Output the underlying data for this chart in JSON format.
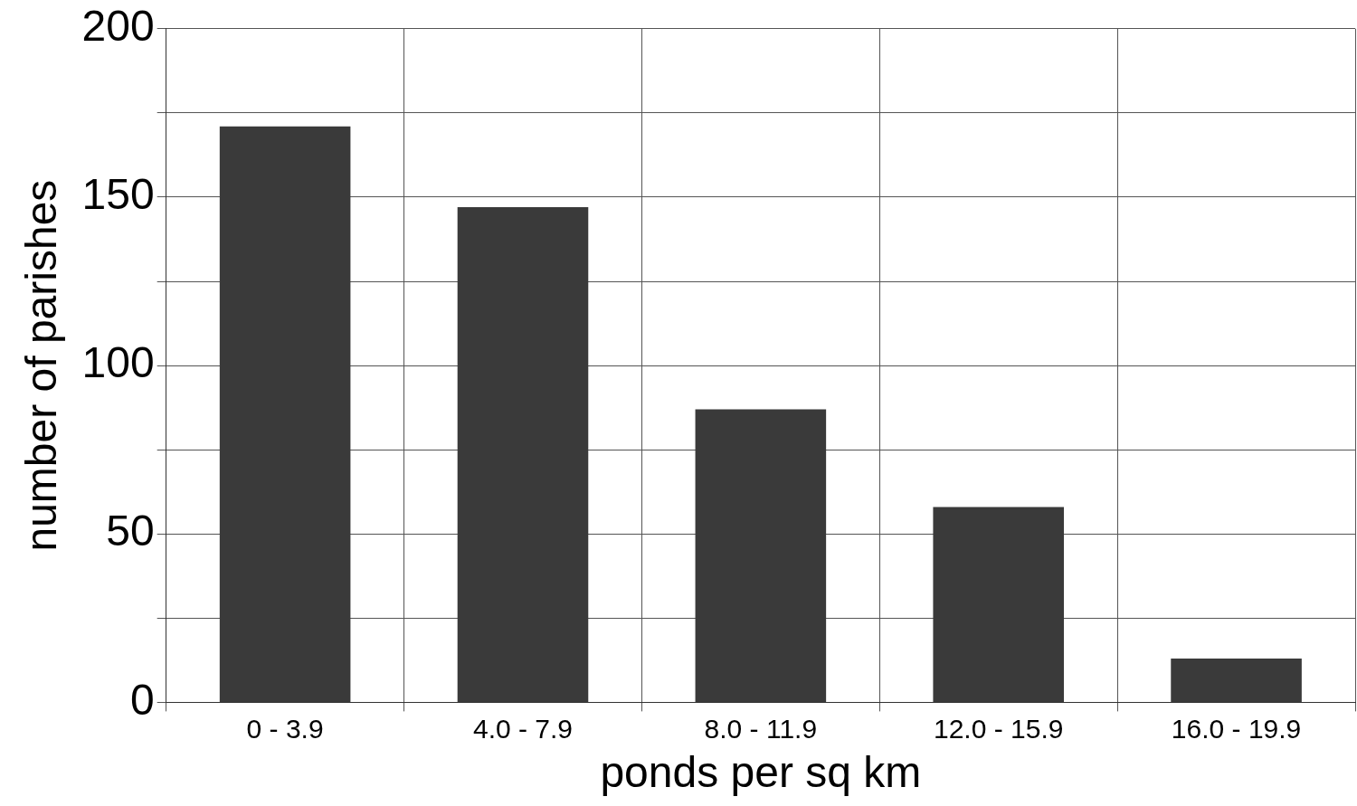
{
  "chart_data": {
    "type": "bar",
    "xlabel": "ponds per sq km",
    "ylabel": "number of parishes",
    "categories": [
      "0 - 3.9",
      "4.0 - 7.9",
      "8.0 - 11.9",
      "12.0 - 15.9",
      "16.0 - 19.9"
    ],
    "values": [
      171,
      147,
      87,
      58,
      13
    ],
    "color": "#3a3a3a",
    "ylim": [
      0,
      200
    ],
    "yticks": [
      0,
      {
        "value": 25,
        "label": null
      },
      50,
      {
        "value": 75,
        "label": null
      },
      100,
      {
        "value": 125,
        "label": null
      },
      150,
      {
        "value": 175,
        "label": null
      },
      200
    ],
    "grid": true
  }
}
